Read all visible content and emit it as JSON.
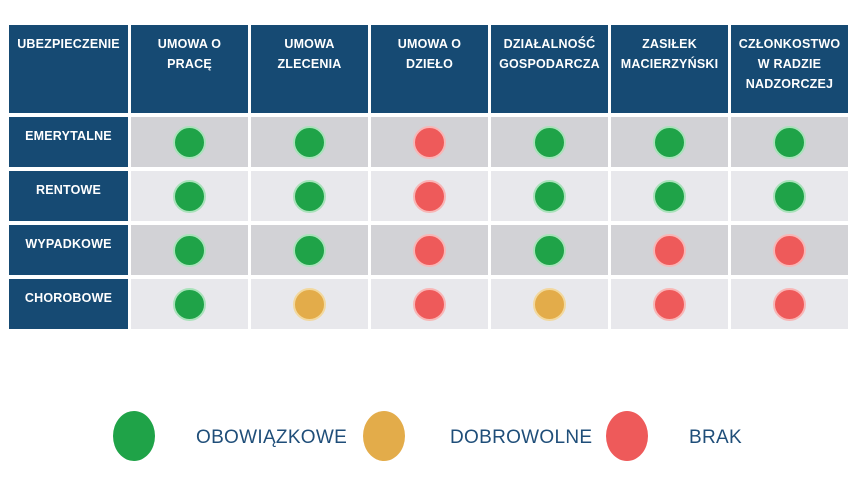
{
  "chart_data": {
    "type": "table",
    "corner_header": "UBEZPIECZENIE",
    "columns": [
      "UMOWA O\nPRACĘ",
      "UMOWA\nZLECENIA",
      "UMOWA O\nDZIEŁO",
      "DZIAŁALNOŚĆ\nGOSPODARCZA",
      "ZASIŁEK\nMACIERZYŃSKI",
      "CZŁONKOSTWO\nW RADZIE\nNADZORCZEJ"
    ],
    "rows": [
      {
        "label": "EMERYTALNE",
        "cells": [
          "mandatory",
          "mandatory",
          "none",
          "mandatory",
          "mandatory",
          "mandatory"
        ]
      },
      {
        "label": "RENTOWE",
        "cells": [
          "mandatory",
          "mandatory",
          "none",
          "mandatory",
          "mandatory",
          "mandatory"
        ]
      },
      {
        "label": "WYPADKOWE",
        "cells": [
          "mandatory",
          "mandatory",
          "none",
          "mandatory",
          "none",
          "none"
        ]
      },
      {
        "label": "CHOROBOWE",
        "cells": [
          "mandatory",
          "voluntary",
          "none",
          "voluntary",
          "none",
          "none"
        ]
      }
    ],
    "legend_order": [
      "mandatory",
      "voluntary",
      "none"
    ]
  },
  "statuses": {
    "mandatory": {
      "label": "OBOWIĄZKOWE",
      "color": "#1fa348",
      "ring": "#a9e2ba"
    },
    "voluntary": {
      "label": "DOBROWOLNE",
      "color": "#e3ac4a",
      "ring": "#f2d89e"
    },
    "none": {
      "label": "BRAK",
      "color": "#ee5a5a",
      "ring": "#f8b6b6"
    }
  },
  "colors": {
    "header_bg": "#164a73",
    "row_dark": "#d2d2d6",
    "row_light": "#e8e8ec",
    "legend_text": "#1f4e79"
  }
}
